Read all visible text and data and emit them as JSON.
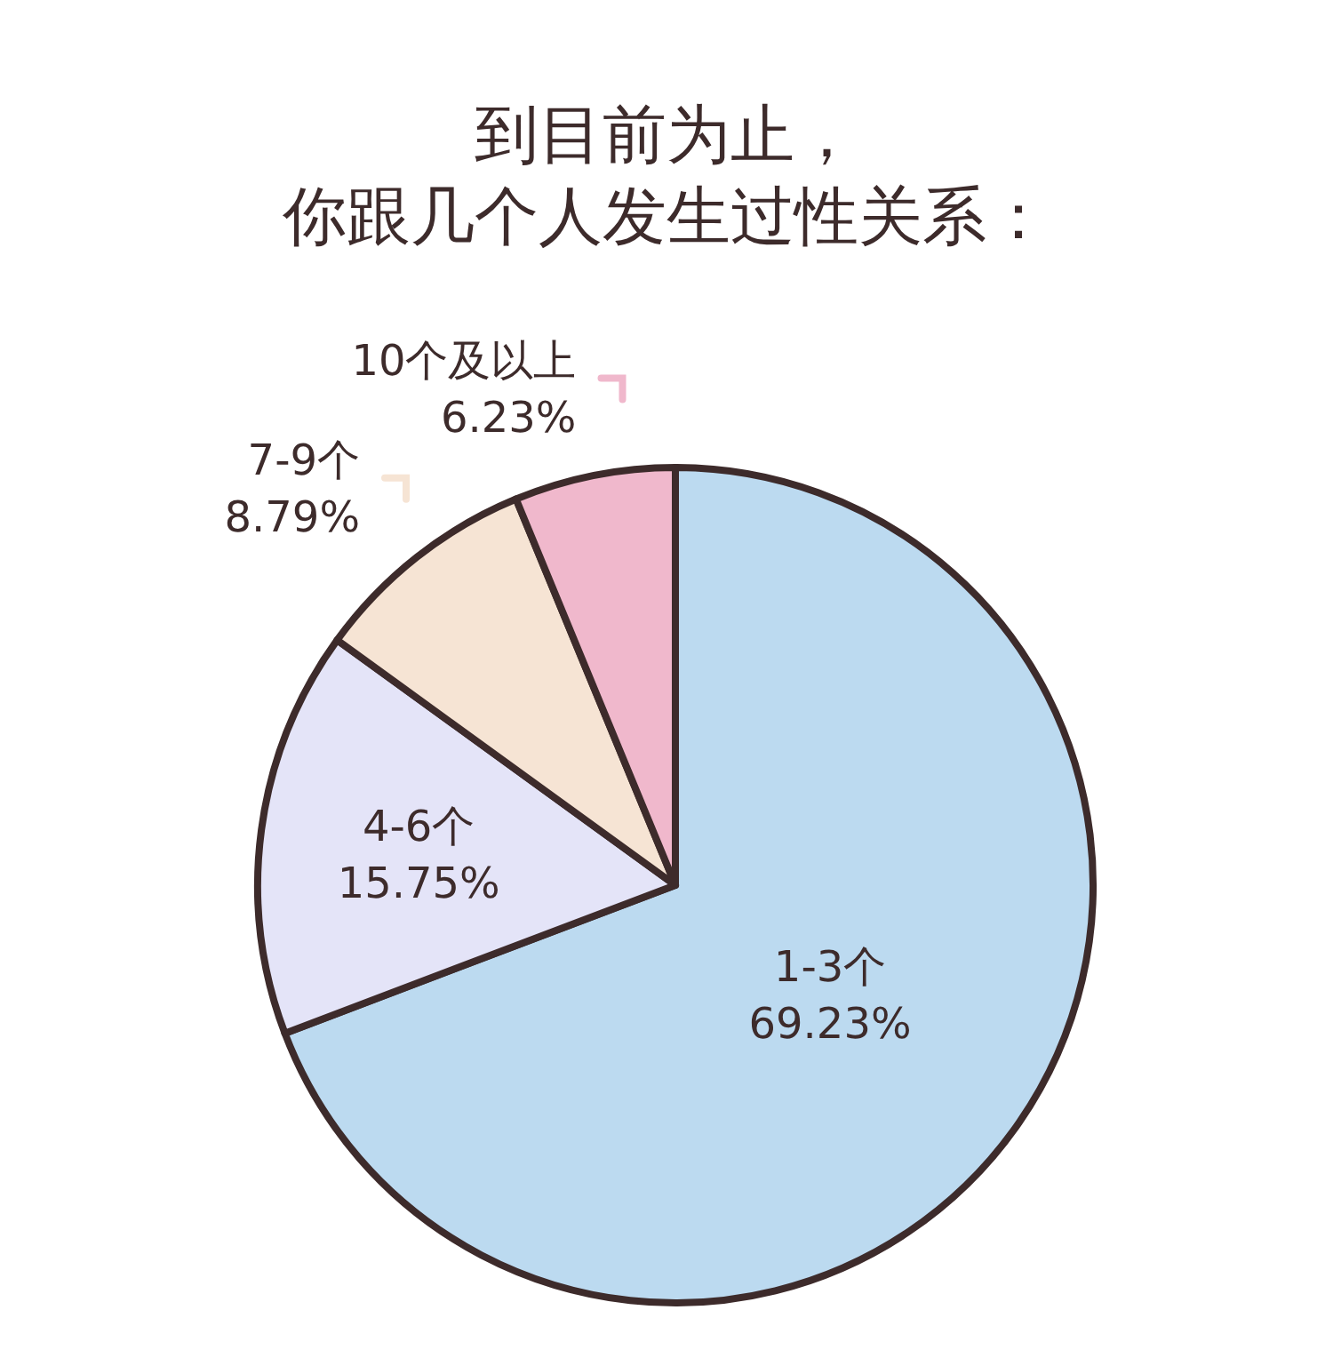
{
  "chart_data": {
    "type": "pie",
    "title": "到目前为止，",
    "subtitle": "你跟几个人发生过性关系：",
    "categories": [
      "1-3个",
      "4-6个",
      "7-9个",
      "10个及以上"
    ],
    "values": [
      69.23,
      15.75,
      8.79,
      6.23
    ],
    "value_labels": [
      "69.23%",
      "15.75%",
      "8.79%",
      "6.23%"
    ],
    "colors": [
      "#bcdaf0",
      "#e4e4f8",
      "#f6e4d4",
      "#f0b8cc"
    ]
  }
}
